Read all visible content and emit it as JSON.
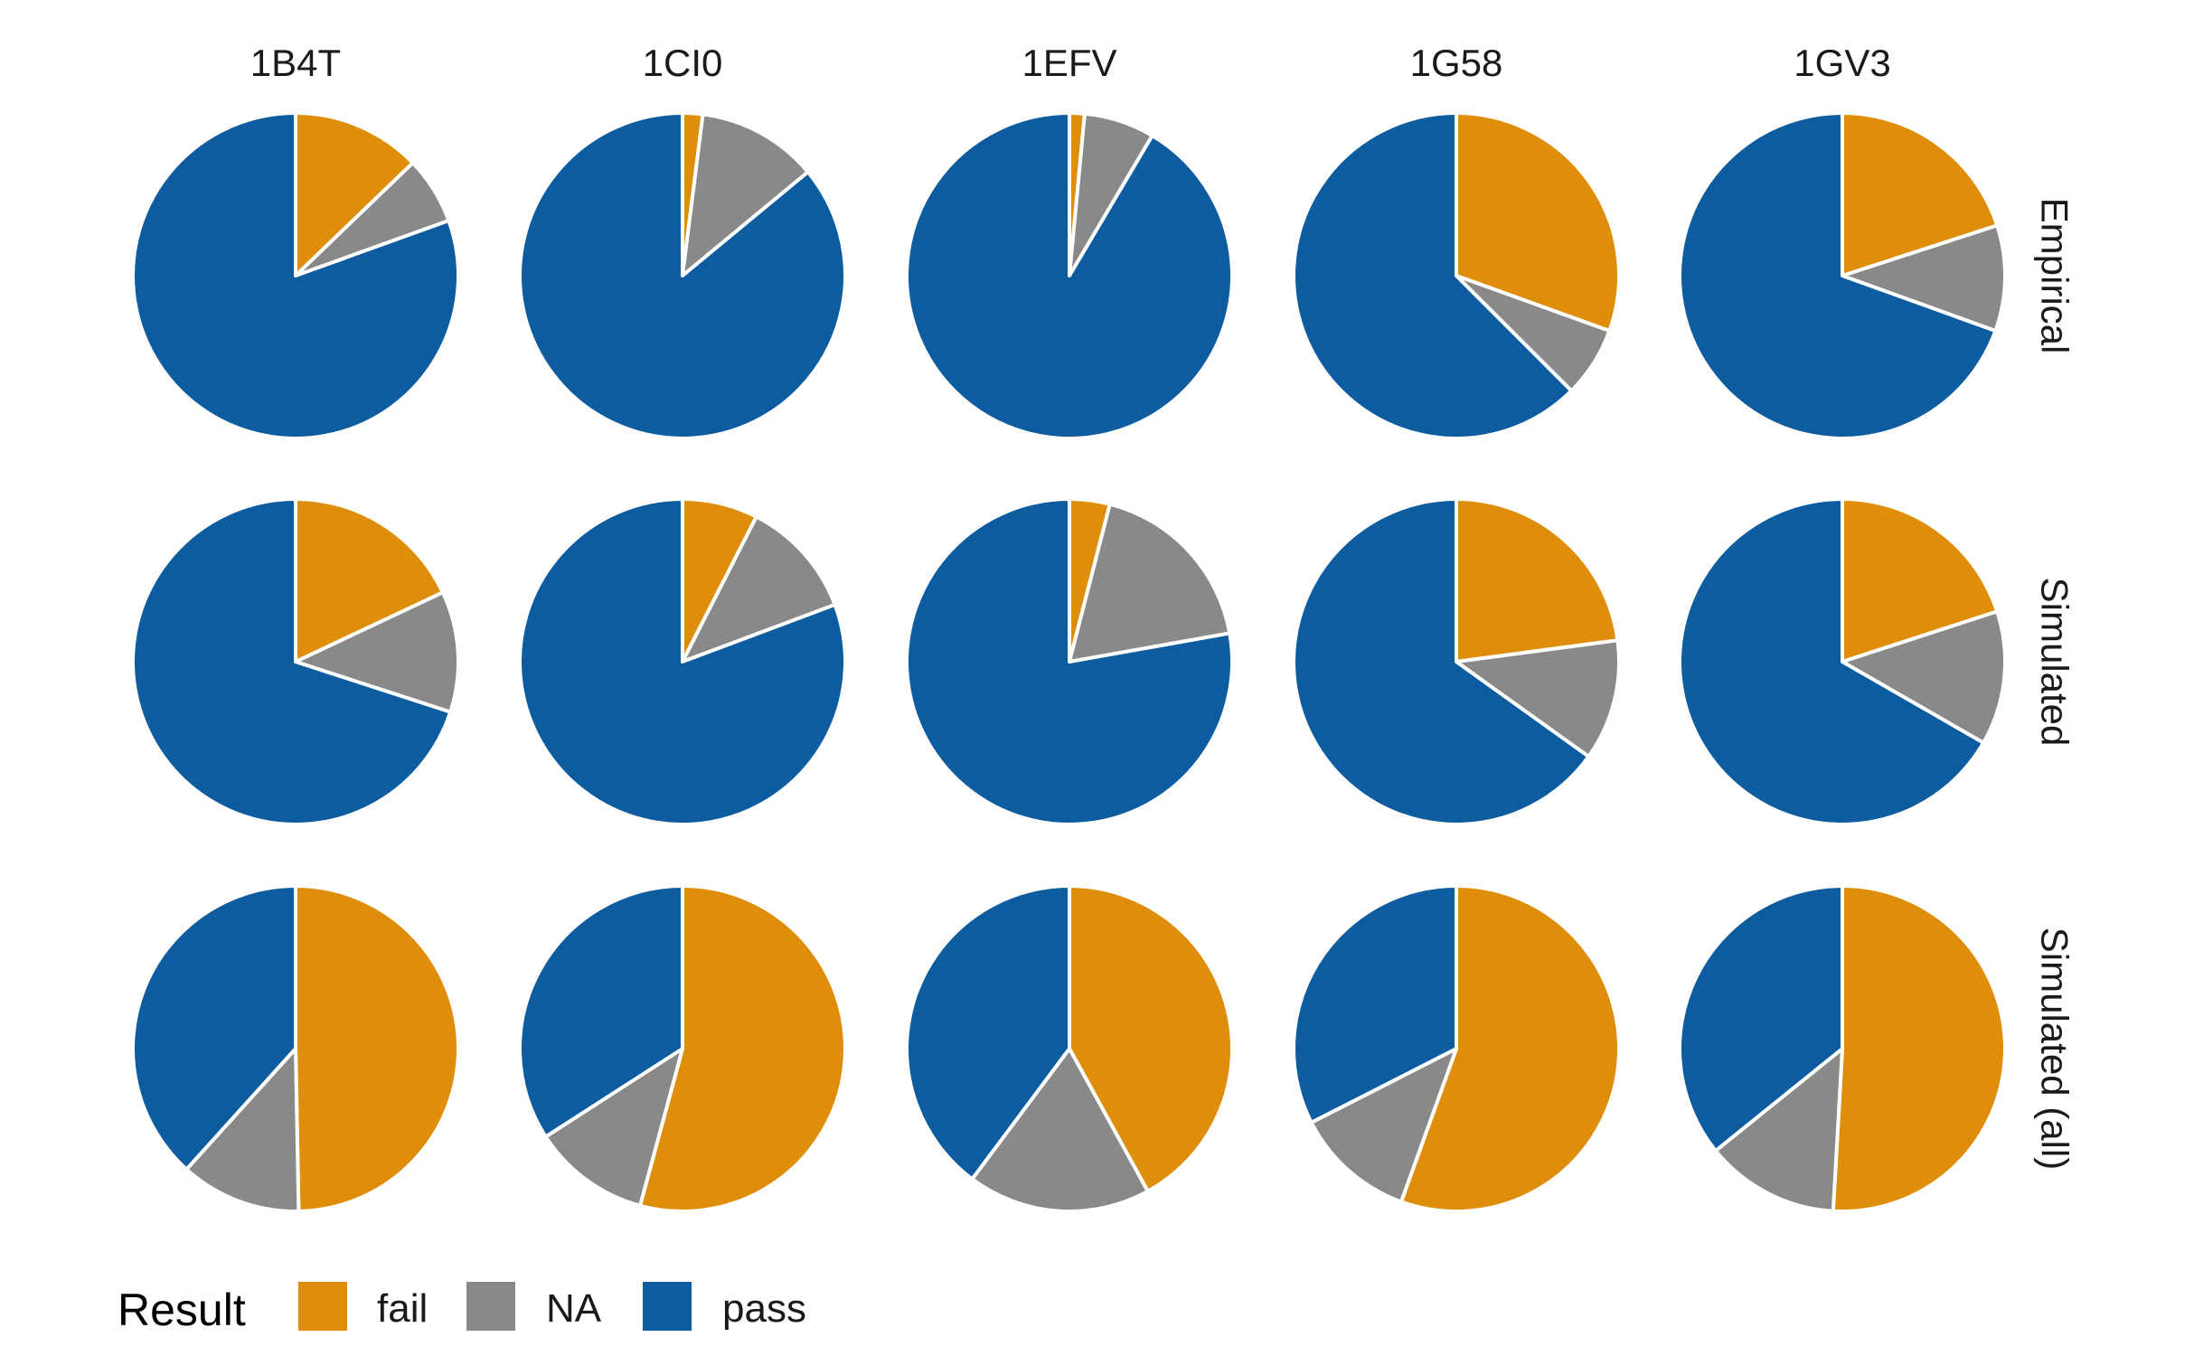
{
  "chart_data": {
    "type": "pie",
    "columns": [
      "1B4T",
      "1CI0",
      "1EFV",
      "1G58",
      "1GV3"
    ],
    "rows": [
      "Empirical",
      "Simulated",
      "Simulated (all)"
    ],
    "categories": [
      "fail",
      "NA",
      "pass"
    ],
    "colors": {
      "fail": "#DE8E0A",
      "NA": "#898989",
      "pass": "#0D5CA0"
    },
    "legend": {
      "title": "Result",
      "position": "bottom-left"
    },
    "panels": [
      [
        {
          "fail": 0.128,
          "NA": 0.067,
          "pass": 0.805
        },
        {
          "fail": 0.02,
          "NA": 0.12,
          "pass": 0.86
        },
        {
          "fail": 0.015,
          "NA": 0.07,
          "pass": 0.915
        },
        {
          "fail": 0.305,
          "NA": 0.07,
          "pass": 0.625
        },
        {
          "fail": 0.2,
          "NA": 0.105,
          "pass": 0.695
        }
      ],
      [
        {
          "fail": 0.18,
          "NA": 0.12,
          "pass": 0.7
        },
        {
          "fail": 0.075,
          "NA": 0.118,
          "pass": 0.807
        },
        {
          "fail": 0.04,
          "NA": 0.182,
          "pass": 0.778
        },
        {
          "fail": 0.229,
          "NA": 0.12,
          "pass": 0.651
        },
        {
          "fail": 0.2,
          "NA": 0.133,
          "pass": 0.667
        }
      ],
      [
        {
          "fail": 0.497,
          "NA": 0.12,
          "pass": 0.383
        },
        {
          "fail": 0.542,
          "NA": 0.117,
          "pass": 0.341
        },
        {
          "fail": 0.42,
          "NA": 0.182,
          "pass": 0.398
        },
        {
          "fail": 0.555,
          "NA": 0.12,
          "pass": 0.325
        },
        {
          "fail": 0.509,
          "NA": 0.133,
          "pass": 0.358
        }
      ]
    ]
  }
}
